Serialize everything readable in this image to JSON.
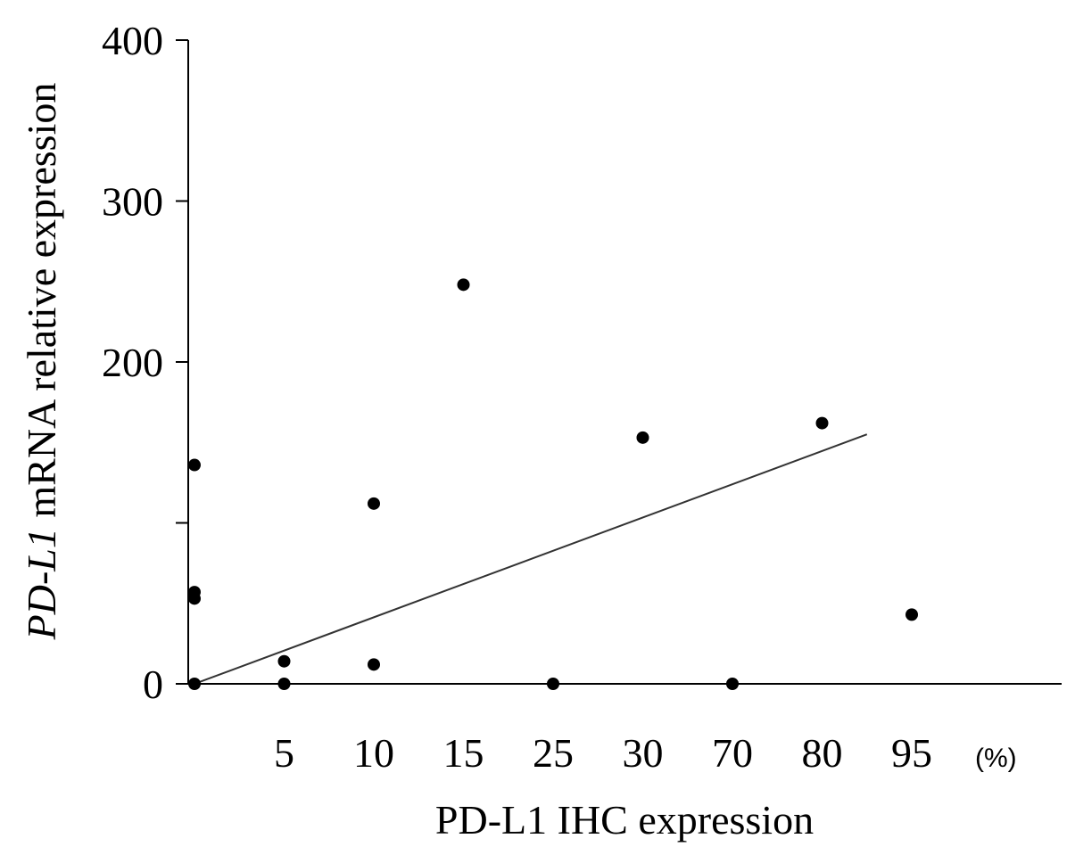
{
  "chart_data": {
    "type": "scatter",
    "title": "",
    "xlabel": "PD-L1 IHC expression",
    "x_unit": "(%)",
    "ylabel_italic": "PD-L1",
    "ylabel_rest": " mRNA relative expression",
    "x_categories": [
      "0",
      "5",
      "10",
      "15",
      "25",
      "30",
      "70",
      "80",
      "95"
    ],
    "x_tick_labels": [
      "5",
      "10",
      "15",
      "25",
      "30",
      "70",
      "80",
      "95"
    ],
    "y_ticks": [
      0,
      100,
      200,
      300,
      400
    ],
    "y_tick_labels": [
      "0",
      "",
      "200",
      "300",
      "400"
    ],
    "ylim": [
      0,
      400
    ],
    "grid": false,
    "legend": "none",
    "points": [
      {
        "x": "0",
        "y": 0
      },
      {
        "x": "0",
        "y": 57
      },
      {
        "x": "0",
        "y": 53
      },
      {
        "x": "0",
        "y": 136
      },
      {
        "x": "5",
        "y": 14
      },
      {
        "x": "5",
        "y": 0
      },
      {
        "x": "10",
        "y": 12
      },
      {
        "x": "10",
        "y": 112
      },
      {
        "x": "15",
        "y": 248
      },
      {
        "x": "25",
        "y": 0
      },
      {
        "x": "30",
        "y": 153
      },
      {
        "x": "70",
        "y": 0
      },
      {
        "x": "80",
        "y": 162
      },
      {
        "x": "95",
        "y": 43
      }
    ],
    "trendline": {
      "x_start": "0",
      "y_start": 0,
      "x_end_between": [
        "80",
        "95"
      ],
      "y_end": 155
    }
  }
}
